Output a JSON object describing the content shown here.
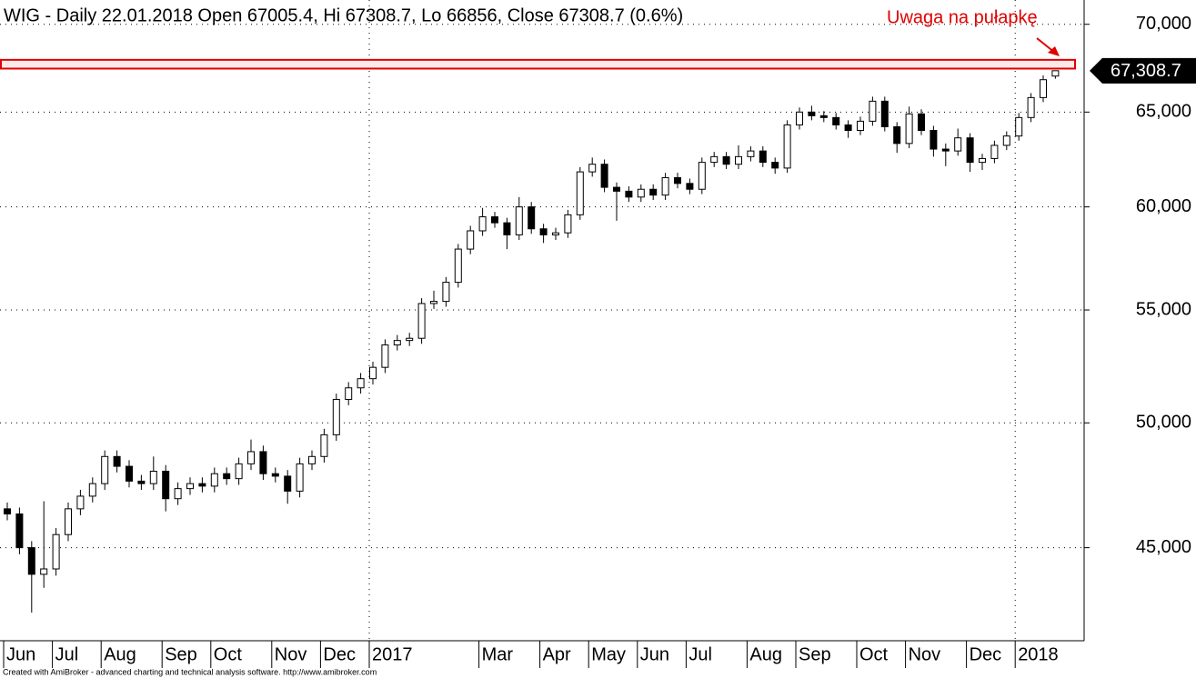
{
  "chart_data": {
    "type": "candlestick",
    "title": "WIG - Daily 22.01.2018 Open 67005.4, Hi 67308.7, Lo 66856, Close 67308.7 (0.6%)",
    "footer": "Created with AmiBroker - advanced charting and technical analysis software. http://www.amibroker.com",
    "annotation": {
      "text": "Uwaga na pułapkę",
      "color": "#e00000",
      "band": [
        67430,
        67930
      ]
    },
    "price_marker": {
      "value": 67308.7,
      "label": "67,308.7"
    },
    "log_scale": true,
    "grid": true,
    "ylim": [
      41600,
      71450
    ],
    "yticks": [
      {
        "value": 45000,
        "label": "45,000"
      },
      {
        "value": 50000,
        "label": "50,000"
      },
      {
        "value": 55000,
        "label": "55,000"
      },
      {
        "value": 60000,
        "label": "60,000"
      },
      {
        "value": 65000,
        "label": "65,000"
      },
      {
        "value": 70000,
        "label": "70,000"
      }
    ],
    "categories": [
      "Jun",
      null,
      null,
      null,
      "Jul",
      null,
      null,
      null,
      "Aug",
      null,
      null,
      null,
      null,
      "Sep",
      null,
      null,
      null,
      "Oct",
      null,
      null,
      null,
      null,
      "Nov",
      null,
      null,
      null,
      "Dec",
      null,
      null,
      null,
      "2017",
      null,
      null,
      null,
      null,
      null,
      null,
      null,
      null,
      "Mar",
      null,
      null,
      null,
      null,
      "Apr",
      null,
      null,
      null,
      "May",
      null,
      null,
      null,
      "Jun",
      null,
      null,
      null,
      "Jul",
      null,
      null,
      null,
      null,
      "Aug",
      null,
      null,
      null,
      "Sep",
      null,
      null,
      null,
      null,
      "Oct",
      null,
      null,
      null,
      "Nov",
      null,
      null,
      null,
      null,
      "Dec",
      null,
      null,
      null,
      "2018",
      null,
      null,
      null
    ],
    "open": [
      46500,
      46300,
      45000,
      44000,
      44200,
      45500,
      46500,
      47000,
      47500,
      48600,
      48200,
      47600,
      47500,
      48000,
      46900,
      47300,
      47500,
      47400,
      47900,
      47700,
      48300,
      48800,
      47900,
      47800,
      47200,
      48300,
      48600,
      49500,
      51000,
      51500,
      51900,
      52400,
      53400,
      53600,
      53700,
      55300,
      55400,
      56300,
      57900,
      58800,
      59500,
      59200,
      58600,
      60000,
      58900,
      58600,
      58700,
      59600,
      61800,
      62200,
      61000,
      60800,
      60500,
      60900,
      60600,
      61500,
      61200,
      60900,
      62300,
      62600,
      62200,
      62600,
      62900,
      62300,
      62000,
      64300,
      65000,
      64800,
      64700,
      64300,
      64000,
      64500,
      65600,
      64200,
      63300,
      64900,
      64000,
      63000,
      62900,
      63600,
      62300,
      62500,
      63200,
      63700,
      64700,
      65800,
      67005.4
    ],
    "high": [
      46750,
      46550,
      45250,
      46800,
      45750,
      46750,
      47250,
      47750,
      48850,
      48850,
      48450,
      47850,
      48600,
      48250,
      47550,
      47750,
      47750,
      48150,
      48150,
      48550,
      49300,
      49050,
      48150,
      48050,
      48550,
      48850,
      49750,
      51250,
      51750,
      52150,
      52650,
      53650,
      53850,
      53950,
      55550,
      55900,
      56550,
      58150,
      59050,
      59950,
      59750,
      59450,
      60500,
      60250,
      59150,
      58950,
      59850,
      62050,
      62550,
      62450,
      61250,
      61050,
      61150,
      61150,
      61750,
      61750,
      61450,
      62550,
      62850,
      62850,
      63200,
      63150,
      63150,
      62550,
      64550,
      65250,
      65350,
      65050,
      64950,
      64550,
      64750,
      65850,
      65850,
      64450,
      65300,
      65150,
      64250,
      63300,
      64100,
      63850,
      62750,
      63450,
      63950,
      64950,
      66050,
      67050,
      67308.7
    ],
    "low": [
      46050,
      44750,
      42600,
      43500,
      43950,
      45250,
      46250,
      46750,
      47250,
      47950,
      47350,
      47250,
      47250,
      46400,
      46650,
      47050,
      47150,
      47150,
      47450,
      47450,
      48050,
      47650,
      47550,
      46700,
      46950,
      48050,
      48350,
      49250,
      50750,
      51250,
      51650,
      52150,
      53150,
      53350,
      53450,
      55050,
      55150,
      56050,
      57650,
      58550,
      58950,
      57900,
      58350,
      58650,
      58200,
      58350,
      58450,
      59350,
      61550,
      60750,
      59300,
      60250,
      60250,
      60350,
      60350,
      60950,
      60650,
      60650,
      62050,
      61950,
      61950,
      62350,
      62050,
      61700,
      61750,
      64050,
      64550,
      64450,
      64050,
      63600,
      63750,
      64250,
      63950,
      62800,
      63050,
      63750,
      62600,
      62100,
      62650,
      61800,
      61900,
      62250,
      62950,
      63450,
      64450,
      65550,
      66856
    ],
    "close": [
      46300,
      45000,
      44000,
      44200,
      45500,
      46500,
      47000,
      47500,
      48600,
      48200,
      47600,
      47500,
      48000,
      46900,
      47300,
      47500,
      47400,
      47900,
      47700,
      48300,
      48800,
      47900,
      47800,
      47200,
      48300,
      48600,
      49500,
      51000,
      51500,
      51900,
      52400,
      53400,
      53600,
      53700,
      55300,
      55400,
      56300,
      57900,
      58800,
      59500,
      59200,
      58600,
      60000,
      58900,
      58600,
      58700,
      59600,
      61800,
      62200,
      61000,
      60800,
      60500,
      60900,
      60600,
      61500,
      61200,
      60900,
      62300,
      62600,
      62200,
      62600,
      62900,
      62300,
      62000,
      64300,
      65000,
      64800,
      64700,
      64300,
      64000,
      64500,
      65600,
      64200,
      63300,
      64900,
      64000,
      63000,
      62900,
      63600,
      62300,
      62500,
      63200,
      63700,
      64700,
      65800,
      66800,
      67308.7
    ],
    "color": "#000000"
  }
}
